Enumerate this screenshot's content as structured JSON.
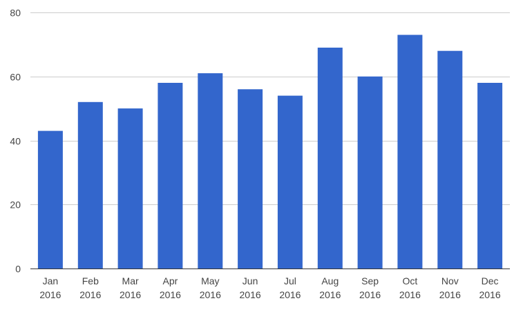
{
  "chart_data": {
    "type": "bar",
    "title": "",
    "xlabel": "",
    "ylabel": "",
    "categories": [
      [
        "Jan",
        "2016"
      ],
      [
        "Feb",
        "2016"
      ],
      [
        "Mar",
        "2016"
      ],
      [
        "Apr",
        "2016"
      ],
      [
        "May",
        "2016"
      ],
      [
        "Jun",
        "2016"
      ],
      [
        "Jul",
        "2016"
      ],
      [
        "Aug",
        "2016"
      ],
      [
        "Sep",
        "2016"
      ],
      [
        "Oct",
        "2016"
      ],
      [
        "Nov",
        "2016"
      ],
      [
        "Dec",
        "2016"
      ]
    ],
    "values": [
      43,
      52,
      50,
      58,
      61,
      56,
      54,
      69,
      60,
      73,
      68,
      58
    ],
    "ylim": [
      0,
      80
    ],
    "yticks": [
      0,
      20,
      40,
      60,
      80
    ],
    "grid": true,
    "legend": "none",
    "colors": {
      "bar": "#3366cc",
      "gridline": "#cccccc",
      "baseline": "#333333",
      "label": "#444444"
    }
  }
}
